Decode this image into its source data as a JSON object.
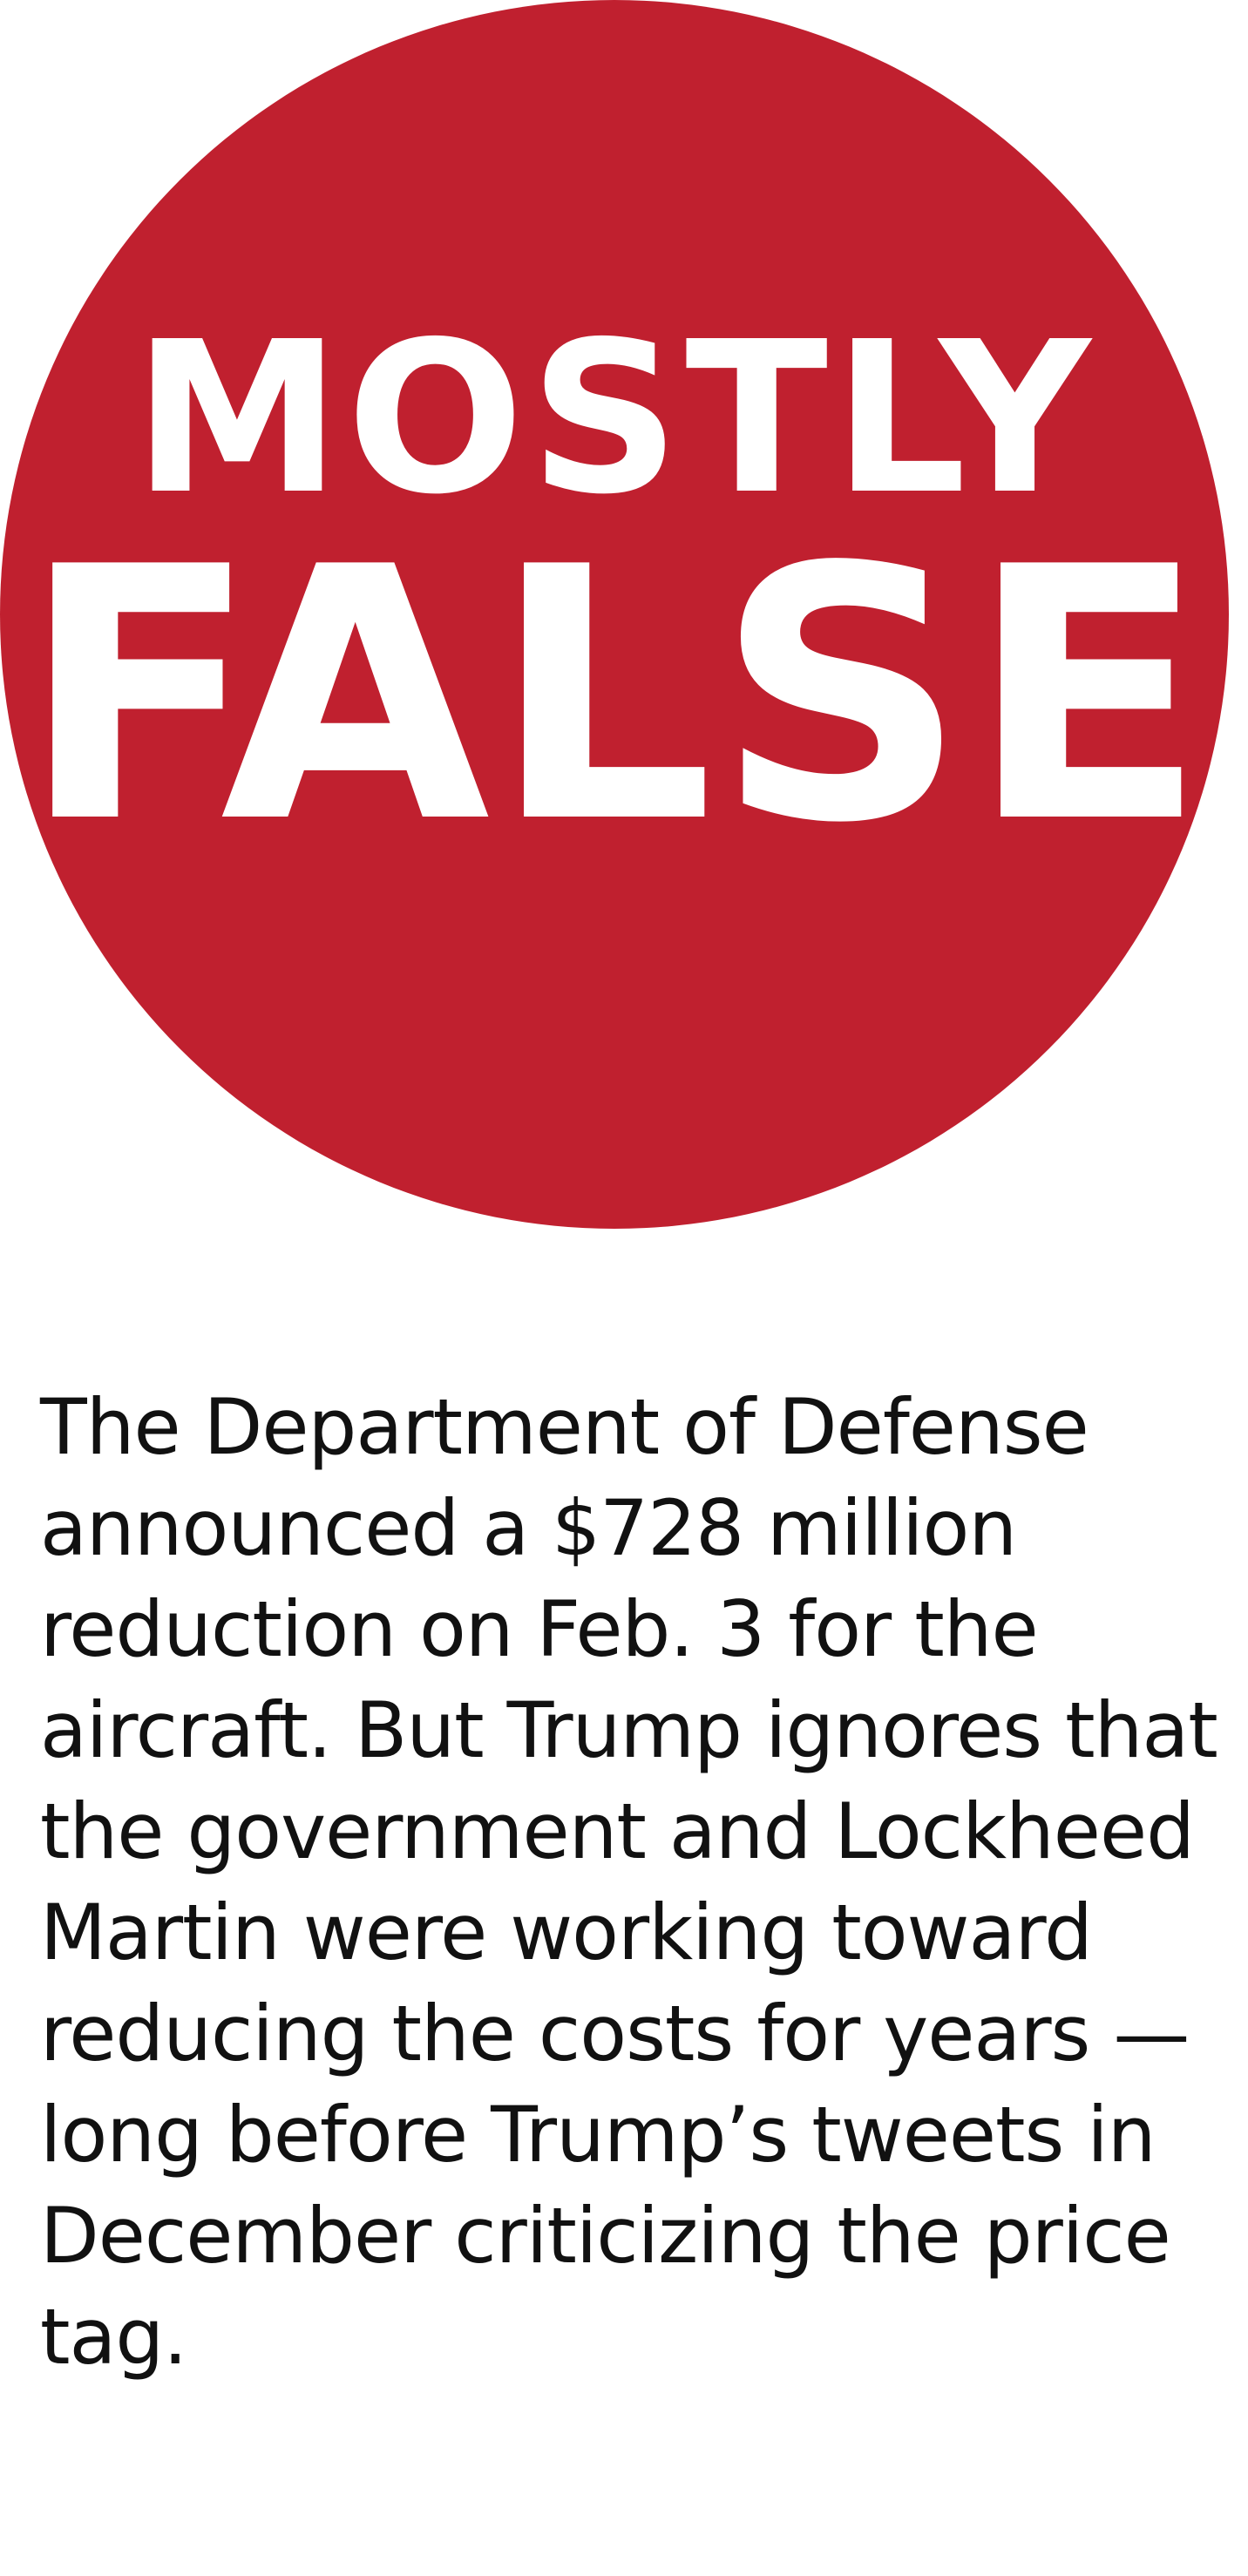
{
  "rating": {
    "line1": "MOSTLY",
    "line2": "FALSE",
    "badge_color": "#c0202f",
    "text_color": "#ffffff"
  },
  "summary": {
    "lines": [
      "The Department of Defense",
      "announced a $728 million",
      "reduction on Feb. 3 for the",
      "aircraft. But Trump ignores that",
      "the government and Lockheed",
      "Martin were working toward",
      "reducing the costs for years —",
      "long before Trump’s tweets in",
      "December criticizing the price",
      "tag."
    ]
  }
}
